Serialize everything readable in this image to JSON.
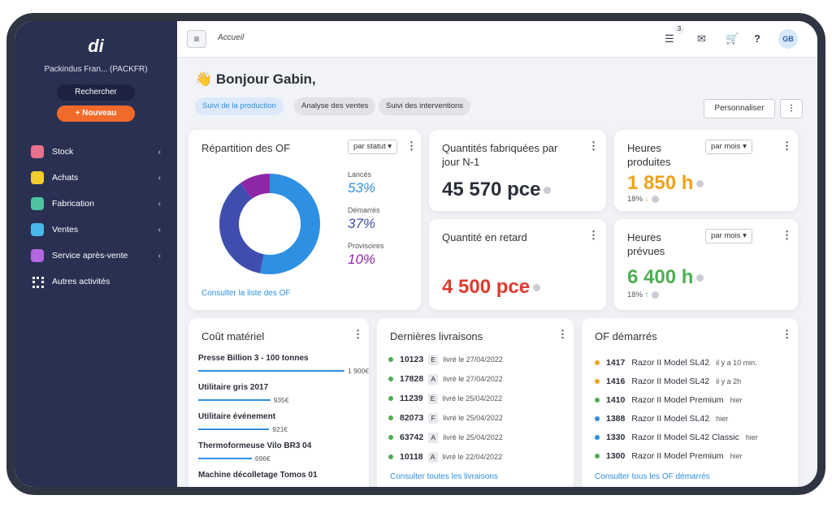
{
  "sidebar": {
    "logo": "di",
    "company": "Packindus Fran... (PACKFR)",
    "search": "Rechercher",
    "new": "+ Nouveau",
    "menu": [
      {
        "label": "Stock",
        "color": "#e9708f"
      },
      {
        "label": "Achats",
        "color": "#f2cf2f"
      },
      {
        "label": "Fabrication",
        "color": "#4fc3a1"
      },
      {
        "label": "Ventes",
        "color": "#49b7ec"
      },
      {
        "label": "Service après-vente",
        "color": "#b468e0"
      },
      {
        "label": "Autres activités",
        "color": "#ffffff"
      }
    ]
  },
  "topbar": {
    "breadcrumb": "Accueil",
    "notification_count": "3",
    "avatar": "GB"
  },
  "greeting": "👋 Bonjour Gabin,",
  "tabs": [
    "Suivi de la production",
    "Analyse des ventes",
    "Suivi des interventions"
  ],
  "customize": "Personnaliser",
  "of_repartition": {
    "title": "Répartition des OF",
    "filter": "par statut",
    "segments": [
      {
        "label": "Lancés",
        "value": 53,
        "value_label": "53%",
        "color": "#2e90e2"
      },
      {
        "label": "Démarrés",
        "value": 37,
        "value_label": "37%",
        "color": "#3f4eae"
      },
      {
        "label": "Provisoires",
        "value": 10,
        "value_label": "10%",
        "color": "#8e27a6"
      }
    ],
    "link": "Consulter la liste des OF"
  },
  "qty_made": {
    "title": "Quantités fabriquées par jour N-1",
    "value": "45 570 pce"
  },
  "hours_made": {
    "title": "Heures produites",
    "filter": "par mois",
    "value": "1 850 h",
    "change": "18%",
    "color": "#f0a21c",
    "trend_color": "#f0a21c"
  },
  "qty_late": {
    "title": "Quantité en retard",
    "value": "4 500 pce",
    "color": "#e03a2e"
  },
  "hours_planned": {
    "title": "Heures prévues",
    "filter": "par mois",
    "value": "6 400 h",
    "change": "18%",
    "color": "#4caf50",
    "trend_color": "#4caf50"
  },
  "material_cost": {
    "title": "Coût matériel",
    "bar_color": "#2e8fe0",
    "items": [
      {
        "label": "Presse Billion 3 - 100 tonnes",
        "value": 1900,
        "value_label": "1 900€"
      },
      {
        "label": "Utilitaire gris 2017",
        "value": 935,
        "value_label": "935€"
      },
      {
        "label": "Utilitaire événement",
        "value": 921,
        "value_label": "921€"
      },
      {
        "label": "Thermoformeuse Vilo BR3 04",
        "value": 696,
        "value_label": "696€"
      },
      {
        "label": "Machine décolletage Tomos 01"
      }
    ]
  },
  "deliveries": {
    "title": "Dernières livraisons",
    "dot_color": "#4caf50",
    "rows": [
      {
        "id": "10123",
        "code": "E",
        "date": "livré le 27/04/2022"
      },
      {
        "id": "17828",
        "code": "A",
        "date": "livré le 27/04/2022"
      },
      {
        "id": "11239",
        "code": "E",
        "date": "livré le 25/04/2022"
      },
      {
        "id": "82073",
        "code": "F",
        "date": "livré le 25/04/2022"
      },
      {
        "id": "63742",
        "code": "A",
        "date": "livré le 25/04/2022"
      },
      {
        "id": "10118",
        "code": "A",
        "date": "livré le 22/04/2022"
      }
    ],
    "link": "Consulter toutes les livraisons"
  },
  "of_started": {
    "title": "OF démarrés",
    "rows": [
      {
        "id": "1417",
        "name": "Razor II Model SL42",
        "time": "il y a 10 min.",
        "color": "#f0a21c"
      },
      {
        "id": "1416",
        "name": "Razor II Model SL42",
        "time": "il y a 2h",
        "color": "#f0a21c"
      },
      {
        "id": "1410",
        "name": "Razor II Model Premium",
        "time": "hier",
        "color": "#4caf50"
      },
      {
        "id": "1388",
        "name": "Razor II Model SL42",
        "time": "hier",
        "color": "#2e8fe0"
      },
      {
        "id": "1330",
        "name": "Razor II Model SL42 Classic",
        "time": "hier",
        "color": "#2e8fe0"
      },
      {
        "id": "1300",
        "name": "Razor II Model Premium",
        "time": "hier",
        "color": "#4caf50"
      }
    ],
    "link": "Consulter tous les OF démarrés"
  }
}
